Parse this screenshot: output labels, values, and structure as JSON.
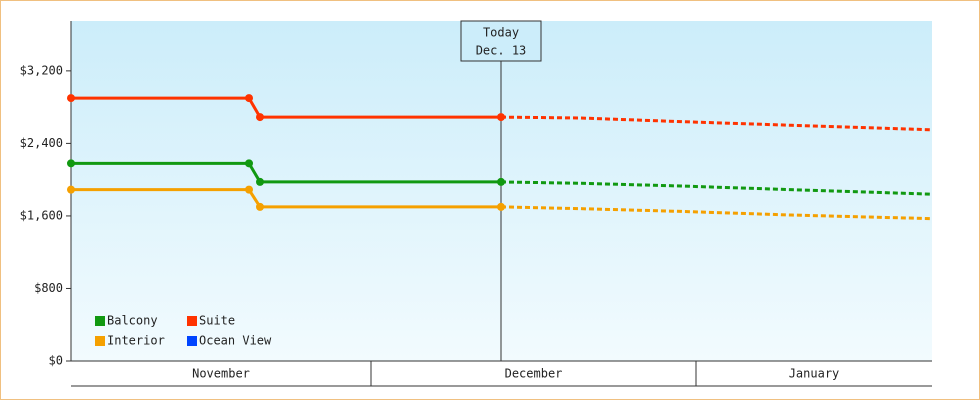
{
  "chart_data": {
    "type": "line",
    "x": [
      0,
      17.8,
      18.9,
      43
    ],
    "forecast_x": [
      43,
      51,
      61,
      72,
      86.1
    ],
    "xlim": [
      0,
      86.1
    ],
    "month_edges": [
      0,
      30,
      62.5,
      86.1
    ],
    "months": [
      "November",
      "December",
      "January"
    ],
    "today_x": 43,
    "today_label": [
      "Today",
      "Dec. 13"
    ],
    "ylim": [
      0,
      3750
    ],
    "yticks": [
      {
        "value": 0,
        "label": "$0"
      },
      {
        "value": 800,
        "label": "$800"
      },
      {
        "value": 1600,
        "label": "$1,600"
      },
      {
        "value": 2400,
        "label": "$2,400"
      },
      {
        "value": 3200,
        "label": "$3,200"
      }
    ],
    "legend": "bottom-left",
    "series": [
      {
        "name": "Balcony",
        "color": "#119911",
        "values": [
          2180,
          2180,
          1975,
          1975
        ],
        "forecast": [
          1975,
          1960,
          1930,
          1890,
          1840
        ]
      },
      {
        "name": "Suite",
        "color": "#ff3300",
        "values": [
          2900,
          2900,
          2690,
          2690
        ],
        "forecast": [
          2690,
          2680,
          2640,
          2600,
          2550
        ]
      },
      {
        "name": "Interior",
        "color": "#f5a000",
        "values": [
          1890,
          1890,
          1700,
          1700
        ],
        "forecast": [
          1700,
          1680,
          1650,
          1610,
          1570
        ]
      },
      {
        "name": "Ocean View",
        "color": "#0044ff",
        "values": [
          null,
          null,
          null,
          null
        ],
        "forecast": [
          null,
          null,
          null,
          null,
          null
        ]
      }
    ]
  }
}
